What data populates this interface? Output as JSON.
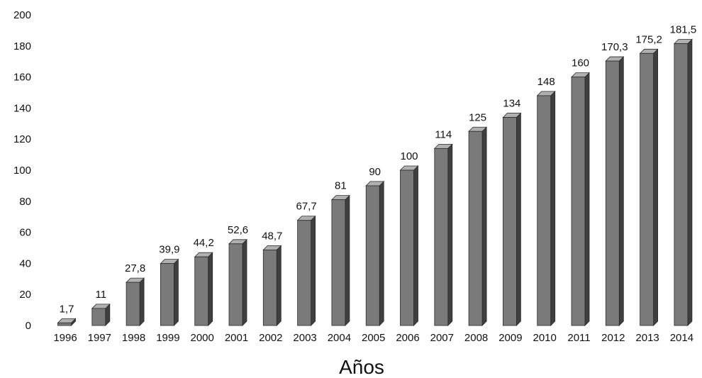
{
  "chart_data": {
    "type": "bar",
    "title": "",
    "xlabel": "Años",
    "ylabel": "",
    "categories": [
      "1996",
      "1997",
      "1998",
      "1999",
      "2000",
      "2001",
      "2002",
      "2003",
      "2004",
      "2005",
      "2006",
      "2007",
      "2008",
      "2009",
      "2010",
      "2011",
      "2012",
      "2013",
      "2014"
    ],
    "values": [
      1.7,
      11,
      27.8,
      39.9,
      44.2,
      52.6,
      48.7,
      67.7,
      81,
      90,
      100,
      114,
      125,
      134,
      148,
      160,
      170.3,
      175.2,
      181.5
    ],
    "value_labels": [
      "1,7",
      "11",
      "27,8",
      "39,9",
      "44,2",
      "52,6",
      "48,7",
      "67,7",
      "81",
      "90",
      "100",
      "114",
      "125",
      "134",
      "148",
      "160",
      "170,3",
      "175,2",
      "181,5"
    ],
    "ylim": [
      0,
      200
    ],
    "yticks": [
      0,
      20,
      40,
      60,
      80,
      100,
      120,
      140,
      160,
      180,
      200
    ],
    "grid": false,
    "legend": "none",
    "bar_style": "3d",
    "colors": {
      "bar_front": "#7a7a7a",
      "bar_side": "#3f3f3f",
      "bar_top": "#b0b0b0",
      "bar_outline": "#2a2a2a"
    }
  }
}
